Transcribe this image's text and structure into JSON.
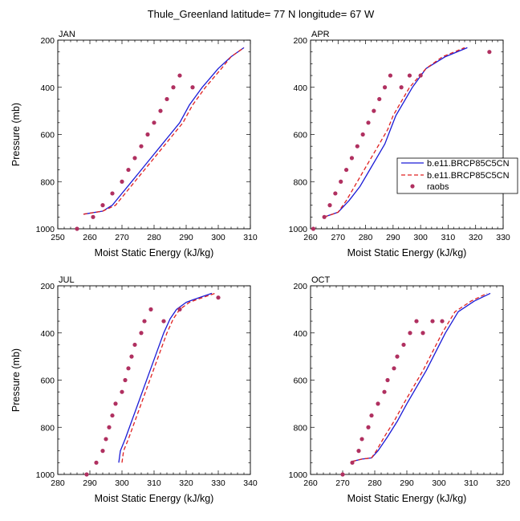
{
  "figure_title": "Thule_Greenland  latitude= 77 N longitude= 67 W",
  "colors": {
    "model1": "#1a1ad6",
    "model2": "#e02020",
    "raobs": "#b03060"
  },
  "legend": {
    "entries": [
      {
        "label": "b.e11.BRCP85C5CN",
        "style": "solid-blue-line"
      },
      {
        "label": "b.e11.BRCP85C5CN",
        "style": "dashed-red-line"
      },
      {
        "label": "raobs",
        "style": "purple-dot"
      }
    ]
  },
  "chart_data": [
    {
      "type": "line",
      "panel_label": "JAN",
      "xlabel": "Moist Static Energy (kJ/kg)",
      "ylabel": "Pressure (mb)",
      "xlim": [
        250,
        310
      ],
      "ylim": [
        200,
        1000
      ],
      "y_reversed": true,
      "xticks": [
        250,
        260,
        270,
        280,
        290,
        300,
        310
      ],
      "yticks": [
        200,
        400,
        600,
        800,
        1000
      ],
      "series": [
        {
          "x": [
            258,
            264,
            267,
            270,
            273,
            276,
            279,
            282,
            285,
            288,
            291,
            295,
            300,
            304,
            308
          ],
          "y": [
            938,
            925,
            900,
            850,
            800,
            750,
            700,
            650,
            600,
            550,
            475,
            400,
            320,
            270,
            232
          ]
        },
        {
          "x": [
            258,
            264,
            268,
            271,
            274,
            277,
            280,
            283,
            286,
            289,
            292,
            296,
            301,
            304,
            308
          ],
          "y": [
            938,
            925,
            900,
            850,
            800,
            750,
            700,
            650,
            600,
            550,
            475,
            400,
            320,
            270,
            232
          ]
        },
        {
          "marker": "dot",
          "x": [
            256,
            261,
            264,
            267,
            270,
            272,
            274,
            276,
            278,
            280,
            282,
            284,
            286,
            288,
            292
          ],
          "y": [
            1000,
            950,
            900,
            850,
            800,
            750,
            700,
            650,
            600,
            550,
            500,
            450,
            400,
            350,
            400
          ]
        }
      ]
    },
    {
      "type": "line",
      "panel_label": "APR",
      "xlabel": "Moist Static Energy (kJ/kg)",
      "ylabel": "",
      "xlim": [
        260,
        330
      ],
      "ylim": [
        200,
        1000
      ],
      "y_reversed": true,
      "xticks": [
        260,
        270,
        280,
        290,
        300,
        310,
        320,
        330
      ],
      "yticks": [
        200,
        400,
        600,
        800,
        1000
      ],
      "series": [
        {
          "x": [
            265,
            270,
            274,
            278,
            281,
            284,
            287,
            289,
            291,
            294,
            297,
            302,
            309,
            317
          ],
          "y": [
            950,
            930,
            880,
            820,
            760,
            700,
            640,
            580,
            520,
            460,
            400,
            320,
            270,
            232
          ]
        },
        {
          "x": [
            265,
            270,
            273,
            276,
            279,
            282,
            285,
            288,
            290,
            293,
            296,
            302,
            308,
            316
          ],
          "y": [
            950,
            930,
            880,
            820,
            760,
            700,
            640,
            580,
            520,
            460,
            400,
            320,
            270,
            232
          ]
        },
        {
          "marker": "dot",
          "x": [
            261,
            265,
            267,
            269,
            271,
            273,
            275,
            277,
            279,
            281,
            283,
            285,
            287,
            289,
            293,
            296,
            300,
            325
          ],
          "y": [
            1000,
            950,
            900,
            850,
            800,
            750,
            700,
            650,
            600,
            550,
            500,
            450,
            400,
            350,
            400,
            350,
            350,
            250
          ]
        }
      ]
    },
    {
      "type": "line",
      "panel_label": "JUL",
      "xlabel": "Moist Static Energy (kJ/kg)",
      "ylabel": "Pressure (mb)",
      "xlim": [
        280,
        340
      ],
      "ylim": [
        200,
        1000
      ],
      "y_reversed": true,
      "xticks": [
        280,
        290,
        300,
        310,
        320,
        330,
        340
      ],
      "yticks": [
        200,
        400,
        600,
        800,
        1000
      ],
      "series": [
        {
          "x": [
            299,
            299.5,
            301,
            303,
            305,
            307,
            309,
            311,
            313,
            315,
            317,
            320,
            322,
            328
          ],
          "y": [
            950,
            900,
            850,
            775,
            700,
            625,
            550,
            475,
            400,
            340,
            300,
            270,
            260,
            232
          ]
        },
        {
          "x": [
            300,
            300.5,
            302,
            304,
            306,
            308,
            310,
            312,
            314,
            316,
            318,
            321,
            323,
            329
          ],
          "y": [
            950,
            900,
            850,
            775,
            700,
            625,
            550,
            475,
            400,
            340,
            300,
            270,
            260,
            232
          ]
        },
        {
          "marker": "dot",
          "x": [
            289,
            292,
            294,
            295,
            296,
            297,
            298,
            300,
            301,
            302,
            303,
            304,
            306,
            307,
            309,
            313,
            318,
            330
          ],
          "y": [
            1000,
            950,
            900,
            850,
            800,
            750,
            700,
            650,
            600,
            550,
            500,
            450,
            400,
            350,
            300,
            350,
            300,
            250
          ]
        }
      ]
    },
    {
      "type": "line",
      "panel_label": "OCT",
      "xlabel": "Moist Static Energy (kJ/kg)",
      "ylabel": "",
      "xlim": [
        260,
        320
      ],
      "ylim": [
        200,
        1000
      ],
      "y_reversed": true,
      "xticks": [
        260,
        270,
        280,
        290,
        300,
        310,
        320
      ],
      "yticks": [
        200,
        400,
        600,
        800,
        1000
      ],
      "series": [
        {
          "x": [
            273,
            276,
            279,
            281,
            284,
            287,
            290,
            293,
            296,
            299,
            302,
            306,
            311,
            316
          ],
          "y": [
            945,
            935,
            930,
            900,
            840,
            775,
            700,
            630,
            560,
            480,
            400,
            310,
            265,
            232
          ]
        },
        {
          "x": [
            273,
            276,
            279,
            280.5,
            283,
            286,
            289,
            292,
            295,
            298,
            301,
            305,
            310,
            315
          ],
          "y": [
            945,
            935,
            930,
            900,
            840,
            775,
            700,
            630,
            560,
            480,
            400,
            310,
            265,
            232
          ]
        },
        {
          "marker": "dot",
          "x": [
            270,
            273,
            275,
            276,
            278,
            279,
            281,
            283,
            284,
            286,
            287,
            289,
            291,
            293,
            295,
            298,
            301
          ],
          "y": [
            1000,
            950,
            900,
            850,
            800,
            750,
            700,
            650,
            600,
            550,
            500,
            450,
            400,
            350,
            400,
            350,
            350
          ]
        }
      ]
    }
  ]
}
